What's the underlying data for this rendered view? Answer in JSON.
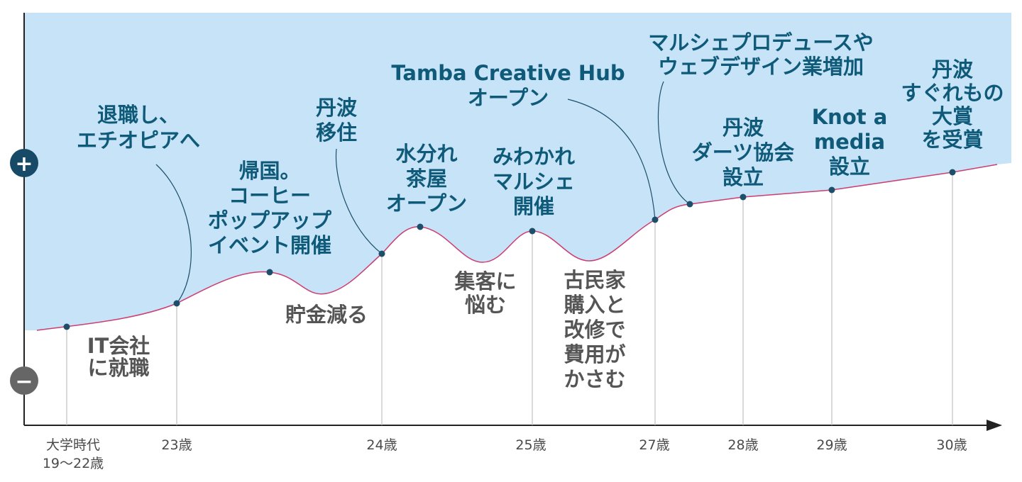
{
  "chart_data": {
    "type": "line",
    "title": "",
    "xlabel": "",
    "ylabel": "",
    "y_positive_symbol": "+",
    "y_negative_symbol": "−",
    "x_ticks": [
      {
        "lines": [
          "大学時代",
          "19〜22歳"
        ],
        "age": 21
      },
      {
        "lines": [
          "23歳"
        ],
        "age": 23
      },
      {
        "lines": [
          "24歳"
        ],
        "age": 24
      },
      {
        "lines": [
          "25歳"
        ],
        "age": 25
      },
      {
        "lines": [
          "27歳"
        ],
        "age": 27
      },
      {
        "lines": [
          "28歳"
        ],
        "age": 28
      },
      {
        "lines": [
          "29歳"
        ],
        "age": 29
      },
      {
        "lines": [
          "30歳"
        ],
        "age": 30
      }
    ],
    "curve": [
      {
        "age": 20.5,
        "level": 0.05
      },
      {
        "age": 21,
        "level": 0.07
      },
      {
        "age": 22.2,
        "level": 0.18
      },
      {
        "age": 23,
        "level": 0.33
      },
      {
        "age": 23.6,
        "level": 0.59
      },
      {
        "age": 24.1,
        "level": 0.58
      },
      {
        "age": 24.35,
        "level": 0.41
      },
      {
        "age": 24.85,
        "level": 0.53
      },
      {
        "age": 25,
        "level": 0.84
      },
      {
        "age": 25.6,
        "level": 1.11
      },
      {
        "age": 26.0,
        "level": 1.03
      },
      {
        "age": 26.4,
        "level": 0.77
      },
      {
        "age": 26.9,
        "level": 0.89
      },
      {
        "age": 27,
        "level": 1.06
      },
      {
        "age": 27.55,
        "level": 0.87
      },
      {
        "age": 28,
        "level": 0.88
      },
      {
        "age": 28.55,
        "level": 1.26
      },
      {
        "age": 28.95,
        "level": 1.53
      },
      {
        "age": 29,
        "level": 1.63
      },
      {
        "age": 29.4,
        "level": 1.89
      },
      {
        "age": 29.6,
        "level": 1.96
      },
      {
        "age": 29.85,
        "level": 2.04
      },
      {
        "age": 30,
        "level": 2.2
      },
      {
        "age": 30.4,
        "level": 2.5
      }
    ],
    "events": [
      {
        "age": 21,
        "level": 0.07,
        "side": "down",
        "lines": [
          "IT会社",
          "に就職"
        ]
      },
      {
        "age": 23,
        "level": 0.33,
        "side": "up",
        "lines": [
          "退職し、",
          "エチオピアへ"
        ]
      },
      {
        "age": 23.6,
        "level": 0.59,
        "side": "up",
        "lines": [
          "帰国。",
          "コーヒー",
          "ポップアップ",
          "イベント開催"
        ]
      },
      {
        "age": 24,
        "level": 0.58,
        "side": "down",
        "lines": [
          "貯金減る"
        ]
      },
      {
        "age": 24.85,
        "level": 0.53,
        "side": "up",
        "lines": [
          "丹波",
          "移住"
        ]
      },
      {
        "age": 25.6,
        "level": 1.11,
        "side": "up",
        "lines": [
          "水分れ",
          "茶屋",
          "オープン"
        ]
      },
      {
        "age": 26.0,
        "level": 1.03,
        "side": "down",
        "lines": [
          "集客に",
          "悩む"
        ]
      },
      {
        "age": 26.9,
        "level": 0.89,
        "side": "up",
        "lines": [
          "みわかれ",
          "マルシェ",
          "開催"
        ]
      },
      {
        "age": 27.4,
        "level": 0.8,
        "side": "down",
        "lines": [
          "古民家",
          "購入と",
          "改修で",
          "費用が",
          "かさむ"
        ]
      },
      {
        "age": 28.55,
        "level": 1.26,
        "side": "up",
        "lines": [
          "Tamba Creative Hub",
          "オープン"
        ]
      },
      {
        "age": 28.95,
        "level": 1.53,
        "side": "up",
        "lines": [
          "マルシェプロデュースや",
          "ウェブデザイン業増加"
        ]
      },
      {
        "age": 29.4,
        "level": 1.89,
        "side": "up",
        "lines": [
          "丹波",
          "ダーツ協会",
          "設立"
        ]
      },
      {
        "age": 29.85,
        "level": 2.04,
        "side": "up",
        "lines": [
          "Knot a",
          "media",
          "設立"
        ]
      },
      {
        "age": 30.4,
        "level": 2.5,
        "side": "up",
        "lines": [
          "丹波",
          "すぐれもの",
          "大賞",
          "を受賞"
        ]
      }
    ],
    "colors": {
      "positive_fill": "#c7e3f8",
      "curve": "#cc3d72",
      "marker": "#1d4f6a",
      "axis": "#222222",
      "up_text": "#0e5a78",
      "down_text": "#555555",
      "plus_badge": "#164a66",
      "minus_badge": "#666666"
    }
  }
}
